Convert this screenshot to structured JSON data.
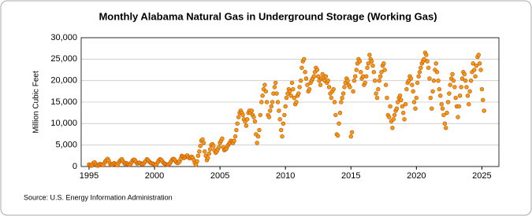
{
  "chart_data": {
    "type": "scatter",
    "title": "Monthly Alabama Natural Gas in Underground Storage (Working Gas)",
    "y_label": "Million Cubic Feet",
    "source": "Source: U.S. Energy Information Administration",
    "color": "#f39c12",
    "edge_color": "#c0500a",
    "grid": true,
    "xlim": [
      1994.4,
      2026.3
    ],
    "xticks": [
      1995,
      2000,
      2005,
      2010,
      2015,
      2020,
      2025
    ],
    "ylim": [
      0,
      30000
    ],
    "yticks": [
      0,
      {
        "value": 5000,
        "label": "5,000"
      },
      {
        "value": 10000,
        "label": "10,000"
      },
      {
        "value": 15000,
        "label": "15,000"
      },
      {
        "value": 20000,
        "label": "20,000"
      },
      {
        "value": 25000,
        "label": "25,000"
      },
      {
        "value": 30000,
        "label": "30,000"
      }
    ],
    "x": [
      1995,
      1995.08,
      1995.17,
      1995.25,
      1995.33,
      1995.42,
      1995.5,
      1995.58,
      1995.67,
      1995.75,
      1995.83,
      1995.92,
      1996,
      1996.08,
      1996.17,
      1996.25,
      1996.33,
      1996.42,
      1996.5,
      1996.58,
      1996.67,
      1996.75,
      1996.83,
      1996.92,
      1997,
      1997.08,
      1997.17,
      1997.25,
      1997.33,
      1997.42,
      1997.5,
      1997.58,
      1997.67,
      1997.75,
      1997.83,
      1997.92,
      1998,
      1998.08,
      1998.17,
      1998.25,
      1998.33,
      1998.42,
      1998.5,
      1998.58,
      1998.67,
      1998.75,
      1998.83,
      1998.92,
      1999,
      1999.08,
      1999.17,
      1999.25,
      1999.33,
      1999.42,
      1999.5,
      1999.58,
      1999.67,
      1999.75,
      1999.83,
      1999.92,
      2000,
      2000.08,
      2000.17,
      2000.25,
      2000.33,
      2000.42,
      2000.5,
      2000.58,
      2000.67,
      2000.75,
      2000.83,
      2000.92,
      2001,
      2001.08,
      2001.17,
      2001.25,
      2001.33,
      2001.42,
      2001.5,
      2001.58,
      2001.67,
      2001.75,
      2001.83,
      2001.92,
      2002,
      2002.08,
      2002.17,
      2002.25,
      2002.33,
      2002.42,
      2002.5,
      2002.58,
      2002.67,
      2002.75,
      2002.83,
      2002.92,
      2003,
      2003.08,
      2003.17,
      2003.25,
      2003.33,
      2003.42,
      2003.5,
      2003.58,
      2003.67,
      2003.75,
      2003.83,
      2003.92,
      2004,
      2004.08,
      2004.17,
      2004.25,
      2004.33,
      2004.42,
      2004.5,
      2004.58,
      2004.67,
      2004.75,
      2004.83,
      2004.92,
      2005,
      2005.08,
      2005.17,
      2005.25,
      2005.33,
      2005.42,
      2005.5,
      2005.58,
      2005.67,
      2005.75,
      2005.83,
      2005.92,
      2006,
      2006.08,
      2006.17,
      2006.25,
      2006.33,
      2006.42,
      2006.5,
      2006.58,
      2006.67,
      2006.75,
      2006.83,
      2006.92,
      2007,
      2007.08,
      2007.17,
      2007.25,
      2007.33,
      2007.42,
      2007.5,
      2007.58,
      2007.67,
      2007.75,
      2007.83,
      2007.92,
      2008,
      2008.08,
      2008.17,
      2008.25,
      2008.33,
      2008.42,
      2008.5,
      2008.58,
      2008.67,
      2008.75,
      2008.83,
      2008.92,
      2009,
      2009.08,
      2009.17,
      2009.25,
      2009.33,
      2009.42,
      2009.5,
      2009.58,
      2009.67,
      2009.75,
      2009.83,
      2009.92,
      2010,
      2010.08,
      2010.17,
      2010.25,
      2010.33,
      2010.42,
      2010.5,
      2010.58,
      2010.67,
      2010.75,
      2010.83,
      2010.92,
      2011,
      2011.08,
      2011.17,
      2011.25,
      2011.33,
      2011.42,
      2011.5,
      2011.58,
      2011.67,
      2011.75,
      2011.83,
      2011.92,
      2012,
      2012.08,
      2012.17,
      2012.25,
      2012.33,
      2012.42,
      2012.5,
      2012.58,
      2012.67,
      2012.75,
      2012.83,
      2012.92,
      2013,
      2013.08,
      2013.17,
      2013.25,
      2013.33,
      2013.42,
      2013.5,
      2013.58,
      2013.67,
      2013.75,
      2013.83,
      2013.92,
      2014,
      2014.08,
      2014.17,
      2014.25,
      2014.33,
      2014.42,
      2014.5,
      2014.58,
      2014.67,
      2014.75,
      2014.83,
      2014.92,
      2015,
      2015.08,
      2015.17,
      2015.25,
      2015.33,
      2015.42,
      2015.5,
      2015.58,
      2015.67,
      2015.75,
      2015.83,
      2015.92,
      2016,
      2016.08,
      2016.17,
      2016.25,
      2016.33,
      2016.42,
      2016.5,
      2016.58,
      2016.67,
      2016.75,
      2016.83,
      2016.92,
      2017,
      2017.08,
      2017.17,
      2017.25,
      2017.33,
      2017.42,
      2017.5,
      2017.58,
      2017.67,
      2017.75,
      2017.83,
      2017.92,
      2018,
      2018.08,
      2018.17,
      2018.25,
      2018.33,
      2018.42,
      2018.5,
      2018.58,
      2018.67,
      2018.75,
      2018.83,
      2018.92,
      2019,
      2019.08,
      2019.17,
      2019.25,
      2019.33,
      2019.42,
      2019.5,
      2019.58,
      2019.67,
      2019.75,
      2019.83,
      2019.92,
      2020,
      2020.08,
      2020.17,
      2020.25,
      2020.33,
      2020.42,
      2020.5,
      2020.58,
      2020.67,
      2020.75,
      2020.83,
      2020.92,
      2021,
      2021.08,
      2021.17,
      2021.25,
      2021.33,
      2021.42,
      2021.5,
      2021.58,
      2021.67,
      2021.75,
      2021.83,
      2021.92,
      2022,
      2022.08,
      2022.17,
      2022.25,
      2022.33,
      2022.42,
      2022.5,
      2022.58,
      2022.67,
      2022.75,
      2022.83,
      2022.92,
      2023,
      2023.08,
      2023.17,
      2023.25,
      2023.33,
      2023.42,
      2023.5,
      2023.58,
      2023.67,
      2023.75,
      2023.83,
      2023.92,
      2024,
      2024.08,
      2024.17,
      2024.25,
      2024.33,
      2024.42,
      2024.5,
      2024.58,
      2024.67,
      2024.75,
      2024.83,
      2024.92,
      2025,
      2025.08,
      2025.17
    ],
    "values": [
      500,
      300,
      200,
      400,
      800,
      1000,
      600,
      300,
      200,
      400,
      600,
      500,
      400,
      300,
      800,
      1200,
      1500,
      1800,
      1400,
      800,
      500,
      400,
      600,
      800,
      600,
      400,
      300,
      800,
      1200,
      1500,
      1700,
      1300,
      900,
      600,
      800,
      700,
      500,
      400,
      600,
      1000,
      1400,
      1600,
      1500,
      1100,
      700,
      800,
      900,
      800,
      600,
      500,
      700,
      1000,
      1300,
      1700,
      1500,
      1200,
      900,
      800,
      700,
      600,
      500,
      400,
      600,
      1000,
      1400,
      1700,
      1600,
      1300,
      900,
      700,
      600,
      500,
      400,
      500,
      700,
      1100,
      1500,
      1800,
      1700,
      1400,
      1000,
      800,
      900,
      1200,
      1800,
      2500,
      2300,
      2000,
      2100,
      2400,
      2600,
      2200,
      1900,
      2100,
      2300,
      2000,
      1500,
      800,
      400,
      1200,
      2500,
      3500,
      4800,
      6000,
      6300,
      5500,
      3500,
      2500,
      1500,
      2000,
      3000,
      4000,
      5000,
      5200,
      4800,
      3800,
      3200,
      3500,
      4000,
      4500,
      5500,
      6000,
      6500,
      4500,
      3800,
      4000,
      4200,
      4800,
      5200,
      5500,
      6000,
      5800,
      5500,
      6000,
      7000,
      8500,
      10000,
      11500,
      12500,
      13000,
      12500,
      12000,
      11000,
      10500,
      9500,
      11000,
      12500,
      13000,
      12500,
      13000,
      12000,
      11500,
      10500,
      7500,
      5500,
      7000,
      8500,
      12000,
      15000,
      16500,
      18000,
      19000,
      17500,
      15000,
      12000,
      11500,
      13000,
      14000,
      15000,
      17000,
      18500,
      19500,
      17000,
      15000,
      13000,
      11000,
      8500,
      7000,
      10000,
      12000,
      14000,
      16000,
      17000,
      18000,
      17500,
      16500,
      19500,
      18000,
      16000,
      14500,
      15000,
      16500,
      17000,
      18500,
      20000,
      23000,
      24500,
      25000,
      22000,
      20500,
      19000,
      17500,
      18000,
      19500,
      20000,
      20500,
      21000,
      22000,
      23000,
      22500,
      21000,
      20000,
      19000,
      20500,
      21500,
      20500,
      20000,
      21000,
      19500,
      20000,
      18500,
      17000,
      16000,
      17500,
      18000,
      15000,
      12000,
      7500,
      7200,
      10000,
      12500,
      15000,
      16000,
      17000,
      18500,
      19500,
      20500,
      20000,
      19000,
      18500,
      7000,
      8000,
      17500,
      20000,
      21000,
      22500,
      24000,
      25000,
      24500,
      22000,
      20500,
      21000,
      19000,
      19500,
      21000,
      23000,
      24000,
      26000,
      25000,
      24500,
      23500,
      22000,
      20000,
      17000,
      16000,
      18000,
      20000,
      21000,
      22000,
      23500,
      24000,
      22500,
      19000,
      16000,
      12000,
      11500,
      14000,
      10500,
      9000,
      11000,
      12000,
      13000,
      13500,
      15000,
      16000,
      16500,
      15500,
      14000,
      12500,
      11000,
      14500,
      18000,
      19500,
      20000,
      21000,
      20500,
      19000,
      17500,
      15000,
      13500,
      16000,
      19500,
      21000,
      22000,
      23000,
      24000,
      24500,
      25000,
      26500,
      26000,
      24500,
      23000,
      20500,
      16000,
      13500,
      17500,
      20000,
      22500,
      24000,
      22000,
      20000,
      18000,
      16500,
      14500,
      13500,
      12000,
      10000,
      9000,
      12500,
      15000,
      17000,
      19000,
      20500,
      21500,
      20000,
      18500,
      16000,
      14000,
      11500,
      14000,
      16500,
      18500,
      20500,
      22000,
      21500,
      20000,
      18500,
      16500,
      14500,
      17500,
      20000,
      22000,
      24000,
      22500,
      21000,
      23500,
      25500,
      26000,
      24000,
      22500,
      18000,
      15500,
      13000
    ]
  }
}
